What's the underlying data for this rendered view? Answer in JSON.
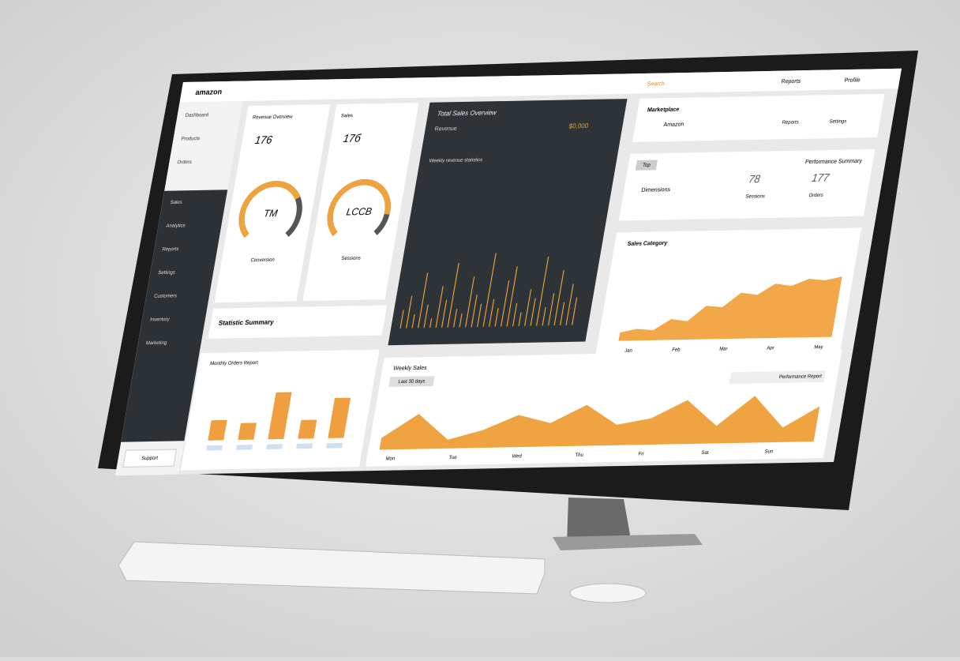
{
  "header": {
    "logo": "amazon",
    "search": "Search",
    "menu": "Reports",
    "user": "Profile"
  },
  "sidebar": {
    "items": [
      "Dashboard",
      "Products",
      "Orders",
      "Sales",
      "Analytics",
      "Reports",
      "Settings",
      "Customers",
      "Inventory",
      "Marketing"
    ],
    "button": "Support"
  },
  "gauges": [
    {
      "title": "Revenue Overview",
      "value_label": "TM",
      "caption": "Conversion",
      "kpi": "176",
      "value": 72
    },
    {
      "title": "Sales",
      "value_label": "LCCB",
      "caption": "Sessions",
      "kpi": "17б",
      "value": 85
    }
  ],
  "dark_panel": {
    "title": "Total Sales Overview",
    "subtitle": "Revenue",
    "badge": "$0,000",
    "note": "Weekly revenue statistics",
    "ylim": [
      0,
      100
    ],
    "values": [
      20,
      35,
      15,
      60,
      25,
      10,
      45,
      30,
      70,
      20,
      15,
      55,
      35,
      25,
      80,
      30,
      20,
      50,
      65,
      25,
      15,
      40,
      30,
      75,
      20,
      35,
      60,
      25,
      45,
      30
    ]
  },
  "summary": {
    "title": "Statistic Summary"
  },
  "stats_card": {
    "title": "Marketplace",
    "subtitle": "Amazon",
    "items": [
      "Reports",
      "Settings"
    ]
  },
  "metrics": {
    "title": "Performance Summary",
    "badge": "Top",
    "label": "Dimensions",
    "items": [
      {
        "value": "78",
        "label": "Sessions"
      },
      {
        "value": "177",
        "label": "Orders"
      }
    ]
  },
  "area": {
    "title": "Sales Category",
    "ylim": [
      0,
      100
    ],
    "x_labels": [
      "Jan",
      "Feb",
      "Mar",
      "Apr",
      "May"
    ],
    "values": [
      10,
      14,
      12,
      25,
      22,
      40,
      38,
      55,
      52,
      65,
      62,
      70,
      68,
      72
    ]
  },
  "bars": {
    "title": "Monthly Orders Report",
    "ylim": [
      0,
      100
    ],
    "values": [
      30,
      25,
      70,
      28,
      60
    ]
  },
  "trend": {
    "title": "Weekly Sales",
    "badge": "Last 30 days",
    "legend": "Performance Report",
    "ylim": [
      0,
      100
    ],
    "values": [
      20,
      60,
      15,
      30,
      55,
      40,
      70,
      35,
      45,
      75,
      30,
      80,
      25,
      60
    ],
    "x_labels": [
      "Mon",
      "Tue",
      "Wed",
      "Thu",
      "Fri",
      "Sat",
      "Sun"
    ]
  }
}
